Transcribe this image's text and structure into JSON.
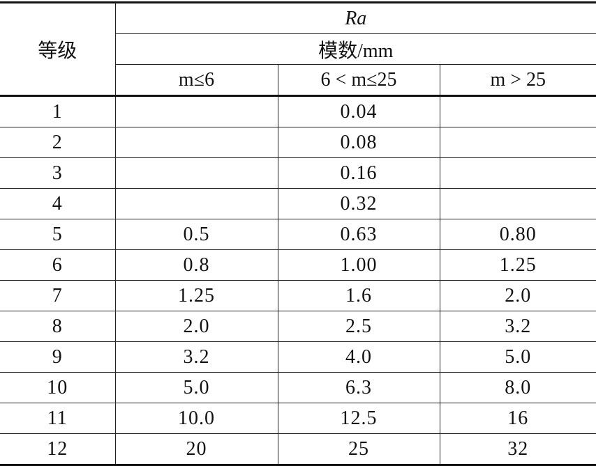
{
  "table": {
    "header": {
      "grade": "等级",
      "ra": "Ra",
      "module": "模数/mm",
      "columns": [
        "m≤6",
        "6 < m≤25",
        "m > 25"
      ]
    },
    "rows": [
      [
        "1",
        null,
        "0.04",
        null
      ],
      [
        "2",
        null,
        "0.08",
        null
      ],
      [
        "3",
        null,
        "0.16",
        null
      ],
      [
        "4",
        null,
        "0.32",
        null
      ],
      [
        "5",
        "0.5",
        "0.63",
        "0.80"
      ],
      [
        "6",
        "0.8",
        "1.00",
        "1.25"
      ],
      [
        "7",
        "1.25",
        "1.6",
        "2.0"
      ],
      [
        "8",
        "2.0",
        "2.5",
        "3.2"
      ],
      [
        "9",
        "3.2",
        "4.0",
        "5.0"
      ],
      [
        "10",
        "5.0",
        "6.3",
        "8.0"
      ],
      [
        "11",
        "10.0",
        "12.5",
        "16"
      ],
      [
        "12",
        "20",
        "25",
        "32"
      ]
    ]
  }
}
